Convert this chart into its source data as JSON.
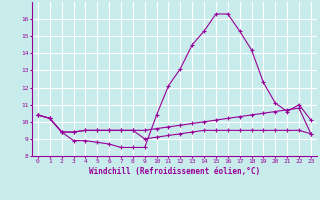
{
  "xlabel": "Windchill (Refroidissement éolien,°C)",
  "bg_color": "#c8ecec",
  "line_color": "#990099",
  "grid_color": "#ffffff",
  "xlim": [
    -0.5,
    23.5
  ],
  "ylim": [
    8,
    17
  ],
  "yticks": [
    8,
    9,
    10,
    11,
    12,
    13,
    14,
    15,
    16
  ],
  "xticks": [
    0,
    1,
    2,
    3,
    4,
    5,
    6,
    7,
    8,
    9,
    10,
    11,
    12,
    13,
    14,
    15,
    16,
    17,
    18,
    19,
    20,
    21,
    22,
    23
  ],
  "line1_x": [
    0,
    1,
    2,
    3,
    4,
    5,
    6,
    7,
    8,
    9,
    10,
    11,
    12,
    13,
    14,
    15,
    16,
    17,
    18,
    19,
    20,
    21,
    22,
    23
  ],
  "line1_y": [
    10.4,
    10.2,
    9.4,
    8.9,
    8.9,
    8.8,
    8.7,
    8.5,
    8.5,
    8.5,
    10.4,
    12.1,
    13.1,
    14.5,
    15.3,
    16.3,
    16.3,
    15.3,
    14.2,
    12.3,
    11.1,
    10.6,
    11.0,
    10.1
  ],
  "line2_x": [
    0,
    1,
    2,
    3,
    4,
    5,
    6,
    7,
    8,
    9,
    10,
    11,
    12,
    13,
    14,
    15,
    16,
    17,
    18,
    19,
    20,
    21,
    22,
    23
  ],
  "line2_y": [
    10.4,
    10.2,
    9.4,
    9.4,
    9.5,
    9.5,
    9.5,
    9.5,
    9.5,
    9.5,
    9.6,
    9.7,
    9.8,
    9.9,
    10.0,
    10.1,
    10.2,
    10.3,
    10.4,
    10.5,
    10.6,
    10.7,
    10.8,
    9.3
  ],
  "line3_x": [
    0,
    1,
    2,
    3,
    4,
    5,
    6,
    7,
    8,
    9,
    10,
    11,
    12,
    13,
    14,
    15,
    16,
    17,
    18,
    19,
    20,
    21,
    22,
    23
  ],
  "line3_y": [
    10.4,
    10.2,
    9.4,
    9.4,
    9.5,
    9.5,
    9.5,
    9.5,
    9.5,
    9.0,
    9.1,
    9.2,
    9.3,
    9.4,
    9.5,
    9.5,
    9.5,
    9.5,
    9.5,
    9.5,
    9.5,
    9.5,
    9.5,
    9.3
  ],
  "xlabel_fontsize": 5.5,
  "tick_fontsize": 4.5
}
